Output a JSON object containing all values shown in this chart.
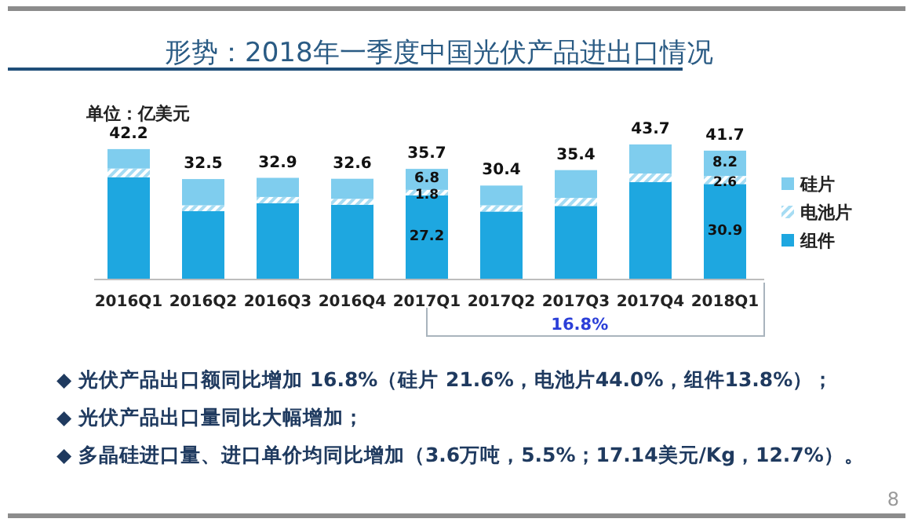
{
  "chart_data": {
    "type": "bar",
    "stacked": true,
    "title": "形势：2018年一季度中国光伏产品进出口情况",
    "ylabel": "单位：亿美元",
    "categories": [
      "2016Q1",
      "2016Q2",
      "2016Q3",
      "2016Q4",
      "2017Q1",
      "2017Q2",
      "2017Q3",
      "2017Q4",
      "2018Q1"
    ],
    "series": [
      {
        "name": "组件",
        "color": "#1ea7e0",
        "values": [
          33.1,
          22.1,
          24.7,
          24.2,
          27.2,
          22.0,
          23.8,
          31.5,
          30.9
        ],
        "value_labels": [
          null,
          null,
          null,
          null,
          "27.2",
          null,
          null,
          null,
          "30.9"
        ]
      },
      {
        "name": "电池片",
        "color": "#a6dcf3",
        "values": [
          2.8,
          1.9,
          2.0,
          1.9,
          1.8,
          2.0,
          2.6,
          2.8,
          2.6
        ],
        "value_labels": [
          null,
          null,
          null,
          null,
          "1.8",
          null,
          null,
          null,
          "2.6"
        ]
      },
      {
        "name": "硅片",
        "color": "#7fcdee",
        "values": [
          6.3,
          8.5,
          6.2,
          6.5,
          6.8,
          6.4,
          9.0,
          9.4,
          8.2
        ],
        "value_labels": [
          null,
          null,
          null,
          null,
          "6.8",
          null,
          null,
          null,
          "8.2"
        ]
      }
    ],
    "totals": [
      "42.2",
      "32.5",
      "32.9",
      "32.6",
      "35.7",
      "30.4",
      "35.4",
      "43.7",
      "41.7"
    ],
    "legend": "right",
    "annotations": [
      "16.8%",
      "◆ 光伏产品出口额同比增加 16.8%（硅片 21.6%，电池片44.0%，组件13.8%）；",
      "◆ 光伏产品出口量同比大幅增加；",
      "◆ 多晶硅进口量、进口单价均同比增加（3.6万吨，5.5%；17.14美元/Kg，12.7%）。",
      "8"
    ]
  }
}
